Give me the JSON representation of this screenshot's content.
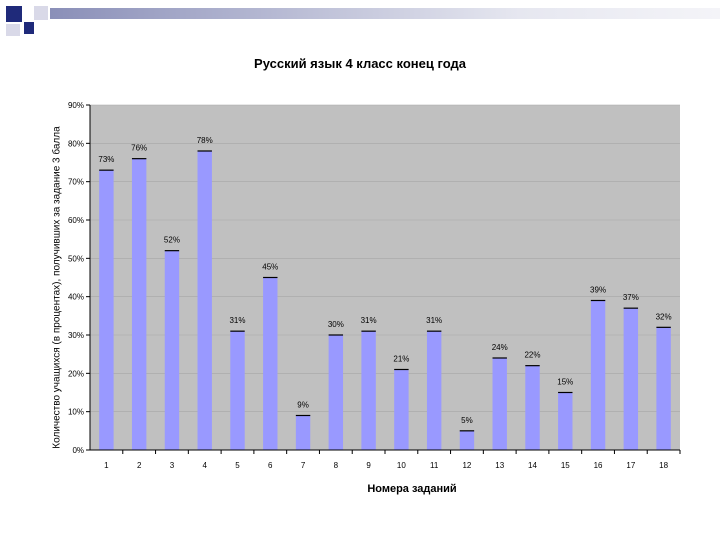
{
  "colors": {
    "plot_bg": "#c0c0c0",
    "bar_fill": "#9999ff",
    "deco_navy": "#1f2a7a",
    "deco_light": "#d9d9e8"
  },
  "chart_data": {
    "type": "bar",
    "title": "Русский язык 4 класс конец года",
    "xlabel": "Номера заданий",
    "ylabel": "Количество учащихся (в процентах), получивших за задание 3 балла",
    "categories": [
      "1",
      "2",
      "3",
      "4",
      "5",
      "6",
      "7",
      "8",
      "9",
      "10",
      "11",
      "12",
      "13",
      "14",
      "15",
      "16",
      "17",
      "18"
    ],
    "values": [
      73,
      76,
      52,
      78,
      31,
      45,
      9,
      30,
      31,
      21,
      31,
      5,
      24,
      22,
      15,
      39,
      37,
      32
    ],
    "data_labels": [
      "73%",
      "76%",
      "52%",
      "78%",
      "31%",
      "45%",
      "9%",
      "30%",
      "31%",
      "21%",
      "31%",
      "5%",
      "24%",
      "22%",
      "15%",
      "39%",
      "37%",
      "32%"
    ],
    "ylim": [
      0,
      90
    ],
    "yticks": [
      0,
      10,
      20,
      30,
      40,
      50,
      60,
      70,
      80,
      90
    ],
    "ytick_labels": [
      "0%",
      "10%",
      "20%",
      "30%",
      "40%",
      "50%",
      "60%",
      "70%",
      "80%",
      "90%"
    ],
    "grid": true,
    "legend": "none"
  }
}
